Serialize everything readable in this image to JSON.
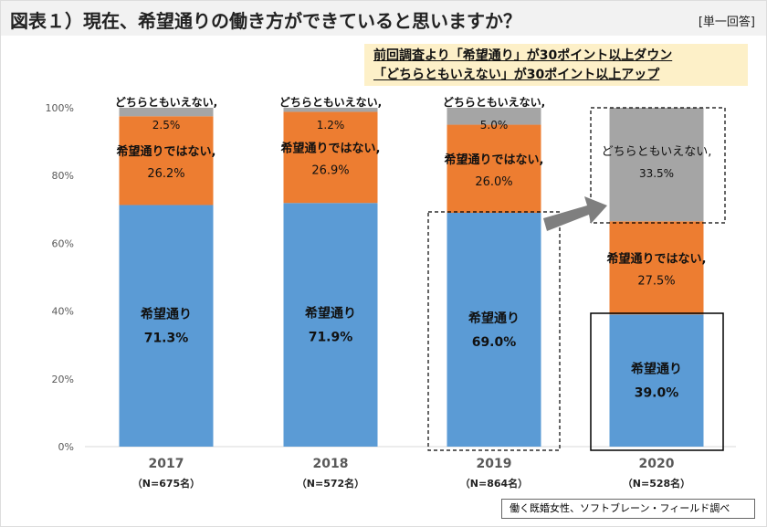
{
  "header": {
    "title": "図表１）現在、希望通りの働き方ができていると思いますか？",
    "answer_type": "[単一回答]"
  },
  "note": {
    "line1": "前回調査より「希望通り」が30ポイント以上ダウン",
    "line2": "「どちらともいえない」が30ポイント以上アップ"
  },
  "source": "働く既婚女性、ソフトブレーン・フィールド調べ",
  "chart_data": {
    "type": "bar",
    "stacked": true,
    "categories": [
      "2017",
      "2018",
      "2019",
      "2020"
    ],
    "sample_sizes": [
      "（N=675名）",
      "（N=572名）",
      "（N=864名）",
      "（N=528名）"
    ],
    "ylim": [
      0,
      100
    ],
    "yticks": [
      "0%",
      "20%",
      "40%",
      "60%",
      "80%",
      "100%"
    ],
    "series": [
      {
        "name": "希望通り",
        "color": "#5b9bd5",
        "values": [
          71.3,
          71.9,
          69.0,
          39.0
        ],
        "labels": [
          "71.3%",
          "71.9%",
          "69.0%",
          "39.0%"
        ]
      },
      {
        "name": "希望通りではない,",
        "color": "#ed7d31",
        "values": [
          26.2,
          26.9,
          26.0,
          27.5
        ],
        "labels": [
          "26.2%",
          "26.9%",
          "26.0%",
          "27.5%"
        ]
      },
      {
        "name": "どちらともいえない,",
        "color": "#a5a5a5",
        "values": [
          2.5,
          1.2,
          5.0,
          33.5
        ],
        "labels": [
          "2.5%",
          "1.2%",
          "5.0%",
          "33.5%"
        ]
      }
    ],
    "grid": false
  }
}
